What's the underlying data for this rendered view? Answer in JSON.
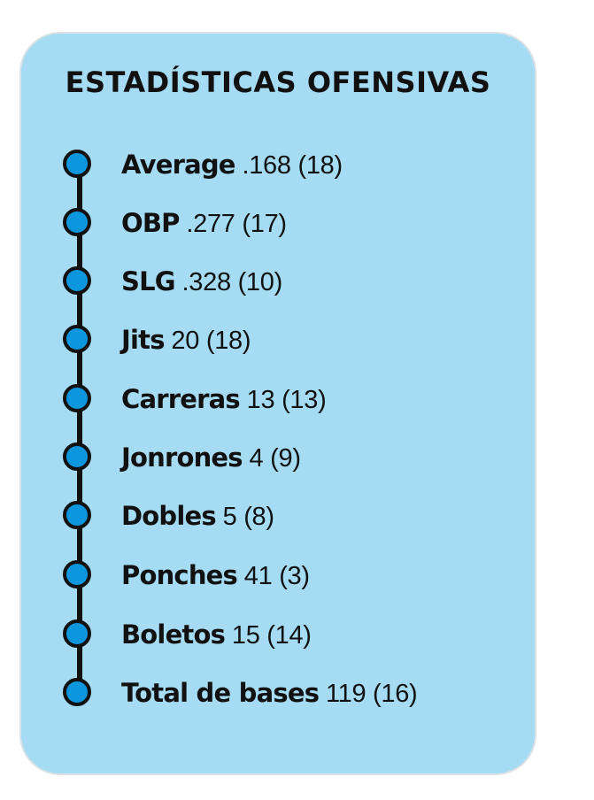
{
  "title": "ESTADÍSTICAS OFENSIVAS",
  "colors": {
    "card_background": "#a6dcf3",
    "dot_fill": "#0b96dd",
    "line": "#111111",
    "text": "#111111"
  },
  "stats": [
    {
      "label": "Average",
      "value": ".168",
      "rank": "(18)"
    },
    {
      "label": "OBP",
      "value": ".277",
      "rank": "(17)"
    },
    {
      "label": "SLG",
      "value": ".328",
      "rank": "(10)"
    },
    {
      "label": "Jits",
      "value": "20",
      "rank": "(18)"
    },
    {
      "label": "Carreras",
      "value": "13",
      "rank": "(13)"
    },
    {
      "label": "Jonrones",
      "value": "4",
      "rank": "(9)"
    },
    {
      "label": "Dobles",
      "value": "5",
      "rank": "(8)"
    },
    {
      "label": "Ponches",
      "value": "41",
      "rank": "(3)"
    },
    {
      "label": "Boletos",
      "value": "15",
      "rank": "(14)"
    },
    {
      "label": "Total de bases",
      "value": "119",
      "rank": "(16)"
    }
  ]
}
